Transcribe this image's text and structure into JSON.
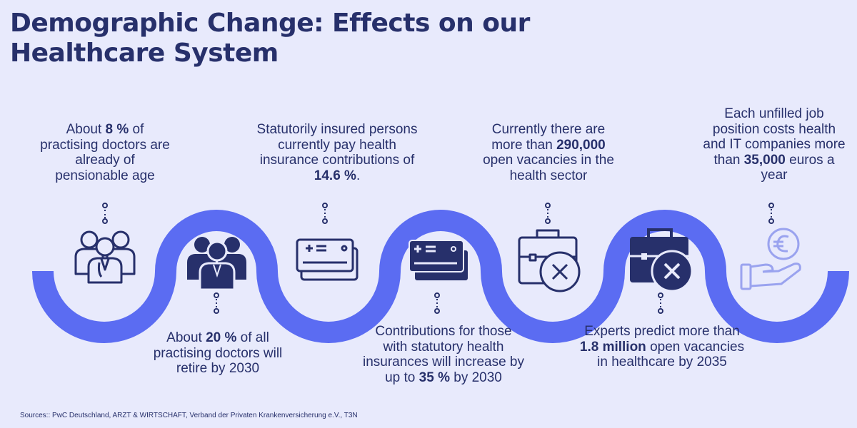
{
  "title_lines": [
    "Demographic Change: Effects on our",
    "Healthcare System"
  ],
  "facts": [
    {
      "pre": "About ",
      "bold": "8 %",
      "post": " of practising doctors are already of pensionable age",
      "icon": "doctors-outline-icon"
    },
    {
      "pre": "About ",
      "bold": "20 %",
      "post": " of all practising doctors will retire by 2030",
      "icon": "doctors-filled-icon"
    },
    {
      "pre": "Statutorily insured persons currently pay health insurance contributions of ",
      "bold": "14.6 %",
      "post": ".",
      "icon": "insurance-cards-outline-icon"
    },
    {
      "pre": "Contributions for those with statutory health insurances will increase by up to ",
      "bold": "35 %",
      "post": " by 2030",
      "icon": "insurance-cards-filled-icon"
    },
    {
      "pre": "Currently there are more than ",
      "bold": "290,000",
      "post": " open vacancies in the health sector",
      "icon": "briefcase-x-outline-icon"
    },
    {
      "pre": "Experts predict more than ",
      "bold": "1.8 million",
      "post": " open vacancies in healthcare by 2035",
      "icon": "briefcase-x-filled-icon"
    },
    {
      "pre": "Each unfilled job position costs health and IT companies more than ",
      "bold": "35,000",
      "post": " euros a year",
      "icon": "euro-hand-icon"
    }
  ],
  "sources": "Sources:: PwC Deutschland, ARZT & WIRTSCHAFT, Verband der Privaten Krankenversicherung e.V., T3N",
  "colors": {
    "background": "#e8eafc",
    "wave": "#5b6cf2",
    "navy": "#27306b",
    "light_icon": "#9aa3ef"
  }
}
